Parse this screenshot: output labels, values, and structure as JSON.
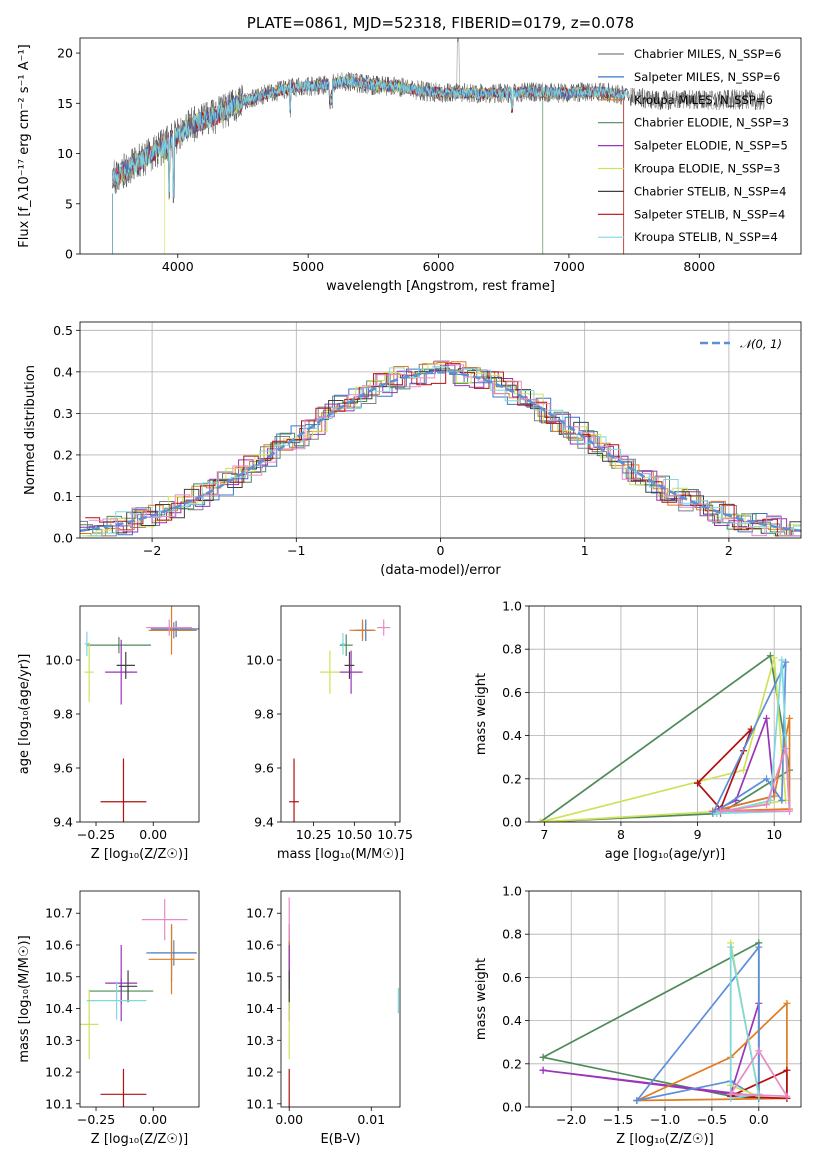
{
  "chart_data": [
    {
      "id": "spectrum",
      "type": "line",
      "title": "PLATE=0861, MJD=52318, FIBERID=0179, z=0.078",
      "xlabel": "wavelength [Angstrom, rest frame]",
      "ylabel": "Flux [f_λ10⁻¹⁷ erg cm⁻² s⁻¹ A⁻¹]",
      "xlim": [
        3250,
        8780
      ],
      "ylim": [
        0,
        21.5
      ],
      "xticks": [
        4000,
        5000,
        6000,
        7000,
        8000
      ],
      "yticks": [
        0,
        5,
        10,
        15,
        20
      ],
      "legend_position": "upper-right",
      "series": [
        {
          "name": "Chabrier MILES, N_SSP=6",
          "color": "#808080"
        },
        {
          "name": "Salpeter MILES, N_SSP=6",
          "color": "#3b75c4"
        },
        {
          "name": "Kroupa MILES, N_SSP=6",
          "color": "#e07b20"
        },
        {
          "name": "Chabrier ELODIE, N_SSP=3",
          "color": "#4e8a5a"
        },
        {
          "name": "Salpeter ELODIE, N_SSP=5",
          "color": "#9a34b8"
        },
        {
          "name": "Kroupa ELODIE, N_SSP=3",
          "color": "#cfe25a"
        },
        {
          "name": "Chabrier STELIB, N_SSP=4",
          "color": "#404040"
        },
        {
          "name": "Salpeter STELIB, N_SSP=4",
          "color": "#b01010"
        },
        {
          "name": "Kroupa STELIB, N_SSP=4",
          "color": "#7fd8e0"
        }
      ],
      "continuum": {
        "x": [
          3500,
          3700,
          3900,
          4100,
          4300,
          4500,
          4700,
          4900,
          5100,
          5300,
          5500,
          5700,
          5900,
          6100,
          6300,
          6500,
          6700,
          6900,
          7100,
          7300,
          7500,
          7700,
          7900,
          8100,
          8300,
          8500
        ],
        "y": [
          7.5,
          9.2,
          10.8,
          12.8,
          13.8,
          15.2,
          16.0,
          16.6,
          16.8,
          17.2,
          16.8,
          16.6,
          16.2,
          16.0,
          16.0,
          16.0,
          16.2,
          16.0,
          16.1,
          16.1,
          15.6,
          15.3,
          15.4,
          15.3,
          15.4,
          15.3
        ]
      }
    },
    {
      "id": "residuals",
      "type": "step",
      "xlabel": "(data-model)/error",
      "ylabel": "Normed distribution",
      "xlim": [
        -2.5,
        2.5
      ],
      "ylim": [
        0,
        0.52
      ],
      "xticks": [
        -2,
        -1,
        0,
        1,
        2
      ],
      "yticks": [
        0.0,
        0.1,
        0.2,
        0.3,
        0.4,
        0.5
      ],
      "grid": true,
      "legend": {
        "label": "𝒩(0, 1)",
        "position": "upper-right",
        "color": "#5b8fd8"
      },
      "bin_width": 0.1
    },
    {
      "id": "age_vs_Z",
      "type": "scatter",
      "xlabel": "Z [log₁₀(Z/Z☉)]",
      "ylabel": "age  [log₁₀(age/yr)]",
      "xlim": [
        -0.32,
        0.2
      ],
      "ylim": [
        9.4,
        10.2
      ],
      "xticks": [
        -0.25,
        0.0
      ],
      "yticks": [
        9.4,
        9.6,
        9.8,
        10.0
      ],
      "points": [
        {
          "x": 0.09,
          "y": 10.11,
          "xerr": 0.1,
          "yerr": 0.03,
          "color": "#808080"
        },
        {
          "x": 0.1,
          "y": 10.115,
          "xerr": 0.11,
          "yerr": 0.03,
          "color": "#3b75c4"
        },
        {
          "x": 0.08,
          "y": 10.11,
          "xerr": 0.1,
          "yerr": 0.09,
          "color": "#e07b20"
        },
        {
          "x": -0.15,
          "y": 10.055,
          "xerr": 0.14,
          "yerr": 0.03,
          "color": "#4e8a5a"
        },
        {
          "x": -0.14,
          "y": 9.955,
          "xerr": 0.07,
          "yerr": 0.12,
          "color": "#9a34b8"
        },
        {
          "x": -0.28,
          "y": 9.955,
          "xerr": 0.02,
          "yerr": 0.11,
          "color": "#cfe25a"
        },
        {
          "x": -0.12,
          "y": 9.98,
          "xerr": 0.04,
          "yerr": 0.05,
          "color": "#404040"
        },
        {
          "x": -0.13,
          "y": 9.475,
          "xerr": 0.1,
          "yerr": 0.16,
          "color": "#b01010"
        },
        {
          "x": -0.29,
          "y": 10.06,
          "xerr": 0.01,
          "yerr": 0.045,
          "color": "#7fd8e0"
        },
        {
          "x": 0.07,
          "y": 10.12,
          "xerr": 0.1,
          "yerr": 0.03,
          "color": "#e88ac8"
        }
      ]
    },
    {
      "id": "age_vs_mass",
      "type": "scatter",
      "xlabel": "mass [log₁₀(M/M☉)]",
      "ylabel": "",
      "xlim": [
        10.05,
        10.78
      ],
      "ylim": [
        9.4,
        10.2
      ],
      "xticks": [
        10.25,
        10.5,
        10.75
      ],
      "yticks": [
        9.4,
        9.6,
        9.8,
        10.0
      ],
      "points": [
        {
          "x": 10.55,
          "y": 10.11,
          "xerr": 0.05,
          "yerr": 0.03,
          "color": "#808080"
        },
        {
          "x": 10.57,
          "y": 10.11,
          "xerr": 0.05,
          "yerr": 0.04,
          "color": "#3b75c4"
        },
        {
          "x": 10.55,
          "y": 10.11,
          "xerr": 0.08,
          "yerr": 0.04,
          "color": "#e07b20"
        },
        {
          "x": 10.45,
          "y": 10.055,
          "xerr": 0.04,
          "yerr": 0.04,
          "color": "#4e8a5a"
        },
        {
          "x": 10.48,
          "y": 9.955,
          "xerr": 0.07,
          "yerr": 0.08,
          "color": "#9a34b8"
        },
        {
          "x": 10.35,
          "y": 9.955,
          "xerr": 0.06,
          "yerr": 0.08,
          "color": "#cfe25a"
        },
        {
          "x": 10.47,
          "y": 9.98,
          "xerr": 0.03,
          "yerr": 0.05,
          "color": "#404040"
        },
        {
          "x": 10.13,
          "y": 9.475,
          "xerr": 0.03,
          "yerr": 0.16,
          "color": "#b01010"
        },
        {
          "x": 10.43,
          "y": 10.06,
          "xerr": 0.01,
          "yerr": 0.04,
          "color": "#7fd8e0"
        },
        {
          "x": 10.68,
          "y": 10.12,
          "xerr": 0.04,
          "yerr": 0.03,
          "color": "#e88ac8"
        }
      ]
    },
    {
      "id": "weight_vs_age",
      "type": "line",
      "xlabel": "age  [log₁₀(age/yr)]",
      "ylabel": "mass weight",
      "xlim": [
        6.8,
        10.35
      ],
      "ylim": [
        0,
        1.0
      ],
      "xticks": [
        7,
        8,
        9,
        10
      ],
      "yticks": [
        0.0,
        0.2,
        0.4,
        0.6,
        0.8,
        1.0
      ],
      "grid": true,
      "series": [
        {
          "color": "#4e8a5a",
          "x": [
            6.95,
            9.95,
            10.2,
            9.3,
            6.95
          ],
          "y": [
            0.0,
            0.77,
            0.24,
            0.04,
            0.0
          ]
        },
        {
          "color": "#cfe25a",
          "x": [
            6.95,
            9.6,
            10.0,
            10.15,
            9.3,
            6.95
          ],
          "y": [
            0.0,
            0.24,
            0.76,
            0.1,
            0.05,
            0.0
          ]
        },
        {
          "color": "#b01010",
          "x": [
            9.0,
            9.3,
            9.6,
            9.7,
            9.0
          ],
          "y": [
            0.18,
            0.06,
            0.33,
            0.43,
            0.18
          ]
        },
        {
          "color": "#9a34b8",
          "x": [
            9.2,
            9.5,
            9.9,
            10.0,
            9.2
          ],
          "y": [
            0.05,
            0.1,
            0.48,
            0.12,
            0.05
          ]
        },
        {
          "color": "#e07b20",
          "x": [
            9.2,
            10.0,
            10.2,
            10.2,
            9.2
          ],
          "y": [
            0.05,
            0.12,
            0.48,
            0.06,
            0.05
          ]
        },
        {
          "color": "#5b8fd8",
          "x": [
            9.2,
            9.9,
            10.1,
            10.15,
            9.2
          ],
          "y": [
            0.04,
            0.2,
            0.1,
            0.74,
            0.04
          ]
        },
        {
          "color": "#7fd8e0",
          "x": [
            9.25,
            9.95,
            10.1,
            10.2,
            9.25
          ],
          "y": [
            0.04,
            0.1,
            0.75,
            0.05,
            0.04
          ]
        },
        {
          "color": "#e88ac8",
          "x": [
            9.3,
            9.9,
            10.15,
            10.2,
            9.3
          ],
          "y": [
            0.05,
            0.08,
            0.34,
            0.05,
            0.05
          ]
        }
      ]
    },
    {
      "id": "mass_vs_Z",
      "type": "scatter",
      "xlabel": "Z [log₁₀(Z/Z☉)]",
      "ylabel": "mass [log₁₀(M/M☉)]",
      "xlim": [
        -0.32,
        0.2
      ],
      "ylim": [
        10.09,
        10.77
      ],
      "xticks": [
        -0.25,
        0.0
      ],
      "yticks": [
        10.1,
        10.2,
        10.3,
        10.4,
        10.5,
        10.6,
        10.7
      ],
      "points": [
        {
          "x": 0.09,
          "y": 10.575,
          "xerr": 0.1,
          "yerr": 0.04,
          "color": "#808080"
        },
        {
          "x": 0.08,
          "y": 10.575,
          "xerr": 0.11,
          "yerr": 0.09,
          "color": "#3b75c4"
        },
        {
          "x": 0.08,
          "y": 10.555,
          "xerr": 0.1,
          "yerr": 0.11,
          "color": "#e07b20"
        },
        {
          "x": -0.14,
          "y": 10.455,
          "xerr": 0.14,
          "yerr": 0.04,
          "color": "#4e8a5a"
        },
        {
          "x": -0.14,
          "y": 10.48,
          "xerr": 0.07,
          "yerr": 0.12,
          "color": "#9a34b8"
        },
        {
          "x": -0.28,
          "y": 10.35,
          "xerr": 0.04,
          "yerr": 0.11,
          "color": "#cfe25a"
        },
        {
          "x": -0.11,
          "y": 10.47,
          "xerr": 0.04,
          "yerr": 0.05,
          "color": "#404040"
        },
        {
          "x": -0.13,
          "y": 10.13,
          "xerr": 0.1,
          "yerr": 0.08,
          "color": "#b01010"
        },
        {
          "x": -0.16,
          "y": 10.425,
          "xerr": 0.13,
          "yerr": 0.06,
          "color": "#7fd8e0"
        },
        {
          "x": 0.05,
          "y": 10.68,
          "xerr": 0.1,
          "yerr": 0.065,
          "color": "#e88ac8"
        }
      ]
    },
    {
      "id": "mass_vs_EBV",
      "type": "scatter",
      "xlabel": "E(B-V)",
      "ylabel": "",
      "xlim": [
        -0.001,
        0.0135
      ],
      "ylim": [
        10.09,
        10.77
      ],
      "xticks": [
        0.0,
        0.01
      ],
      "yticks": [
        10.1,
        10.2,
        10.3,
        10.4,
        10.5,
        10.6,
        10.7
      ],
      "points": [
        {
          "x": 0.0,
          "y": 10.575,
          "xerr": 0.0,
          "yerr": 0.04,
          "color": "#808080"
        },
        {
          "x": 0.0,
          "y": 10.575,
          "xerr": 0.0,
          "yerr": 0.09,
          "color": "#3b75c4"
        },
        {
          "x": 0.0,
          "y": 10.555,
          "xerr": 0.0,
          "yerr": 0.11,
          "color": "#e07b20"
        },
        {
          "x": 0.0,
          "y": 10.455,
          "xerr": 0.0,
          "yerr": 0.04,
          "color": "#4e8a5a"
        },
        {
          "x": 0.0,
          "y": 10.48,
          "xerr": 0.0,
          "yerr": 0.12,
          "color": "#9a34b8"
        },
        {
          "x": 0.0,
          "y": 10.35,
          "xerr": 0.0,
          "yerr": 0.11,
          "color": "#cfe25a"
        },
        {
          "x": 0.0,
          "y": 10.47,
          "xerr": 0.0,
          "yerr": 0.05,
          "color": "#404040"
        },
        {
          "x": 0.0,
          "y": 10.13,
          "xerr": 0.0,
          "yerr": 0.08,
          "color": "#b01010"
        },
        {
          "x": 0.0133,
          "y": 10.425,
          "xerr": 0.0,
          "yerr": 0.04,
          "color": "#7fd8e0"
        },
        {
          "x": 0.0,
          "y": 10.68,
          "xerr": 0.0,
          "yerr": 0.07,
          "color": "#e88ac8"
        }
      ]
    },
    {
      "id": "weight_vs_Z",
      "type": "line",
      "xlabel": "Z [log₁₀(Z/Z☉)]",
      "ylabel": "mass weight",
      "xlim": [
        -2.45,
        0.45
      ],
      "ylim": [
        0,
        1.0
      ],
      "xticks": [
        -2.0,
        -1.5,
        -1.0,
        -0.5,
        0.0
      ],
      "yticks": [
        0.0,
        0.2,
        0.4,
        0.6,
        0.8,
        1.0
      ],
      "grid": true,
      "series": [
        {
          "color": "#4e8a5a",
          "x": [
            -2.3,
            0.0,
            0.0,
            -0.3,
            -2.3
          ],
          "y": [
            0.23,
            0.76,
            0.04,
            0.05,
            0.23
          ]
        },
        {
          "color": "#9a34b8",
          "x": [
            -2.3,
            -0.3,
            0.0,
            0.0,
            -2.3
          ],
          "y": [
            0.17,
            0.06,
            0.48,
            0.05,
            0.17
          ]
        },
        {
          "color": "#e07b20",
          "x": [
            -1.3,
            -0.3,
            0.3,
            0.3,
            -1.3
          ],
          "y": [
            0.03,
            0.23,
            0.48,
            0.04,
            0.03
          ]
        },
        {
          "color": "#5b8fd8",
          "x": [
            -1.3,
            -0.3,
            0.0,
            0.0,
            -1.3
          ],
          "y": [
            0.03,
            0.12,
            0.04,
            0.74,
            0.03
          ]
        },
        {
          "color": "#b01010",
          "x": [
            -0.3,
            0.3,
            0.3,
            -0.3
          ],
          "y": [
            0.05,
            0.17,
            0.04,
            0.05
          ]
        },
        {
          "color": "#cfe25a",
          "x": [
            -0.3,
            -0.3,
            0.0,
            -0.3
          ],
          "y": [
            0.1,
            0.76,
            0.05,
            0.1
          ]
        },
        {
          "color": "#7fd8e0",
          "x": [
            -0.3,
            -0.3,
            0.0,
            -0.3
          ],
          "y": [
            0.04,
            0.74,
            0.06,
            0.04
          ]
        },
        {
          "color": "#e88ac8",
          "x": [
            -0.3,
            0.0,
            0.3,
            -0.3
          ],
          "y": [
            0.06,
            0.26,
            0.05,
            0.06
          ]
        }
      ]
    }
  ]
}
